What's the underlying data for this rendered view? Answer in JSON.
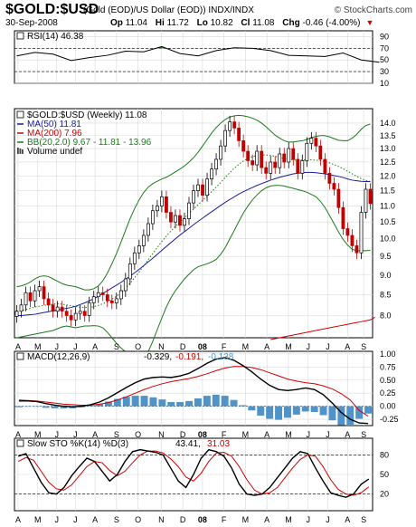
{
  "header": {
    "symbol": "$GOLD:$USD",
    "description": "(Gold (EOD)/US Dollar (EOD))  INDX/INDX",
    "date": "30-Sep-2008",
    "op_label": "Op",
    "op": "11.04",
    "hi_label": "Hi",
    "hi": "11.72",
    "lo_label": "Lo",
    "lo": "10.82",
    "cl_label": "Cl",
    "cl": "11.08",
    "chg_label": "Chg",
    "chg": "-0.46 (-4.00%)",
    "brand": "© StockCharts.com"
  },
  "colors": {
    "ma50": "#1a1aa0",
    "ma200": "#d00000",
    "bb": "#1a7a1a",
    "up": "#ffffff",
    "down": "#c00000",
    "hist": "#4f93c8",
    "green_fill": "#2e7d32"
  },
  "chart_data": [
    {
      "type": "line",
      "panel": "RSI",
      "title": "RSI(14) 46.38",
      "ylim": [
        10,
        100
      ],
      "y_ticks": [
        90,
        70,
        50,
        30,
        10
      ],
      "reference_lines": [
        70,
        30
      ],
      "x_index": [
        0,
        4,
        8,
        12,
        16,
        20,
        24,
        28,
        32,
        36,
        40,
        44,
        48,
        52,
        56,
        60,
        64,
        68,
        72,
        76,
        80
      ],
      "values": [
        57,
        63,
        60,
        49,
        54,
        58,
        65,
        64,
        73,
        61,
        57,
        66,
        71,
        70,
        66,
        58,
        57,
        56,
        62,
        50,
        46
      ]
    },
    {
      "type": "candlestick",
      "panel": "Price",
      "title": "$GOLD:$USD (Weekly) 11.08",
      "legend": [
        "MA(50) 11.81",
        "MA(200) 7.96",
        "BB(20,2.0) 9.67 - 11.81 - 13.96",
        "Volume undef"
      ],
      "log_scale": true,
      "ylim": [
        7.5,
        14.6
      ],
      "y_ticks": [
        8.0,
        8.5,
        9.0,
        9.5,
        10.0,
        10.5,
        11.0,
        11.5,
        12.0,
        12.5,
        13.0,
        13.5,
        14.0
      ],
      "x_labels": [
        "A",
        "M",
        "J",
        "J",
        "A",
        "S",
        "O",
        "N",
        "D",
        "08",
        "F",
        "M",
        "A",
        "M",
        "J",
        "J",
        "A",
        "S"
      ],
      "closes": [
        8.1,
        8.25,
        8.55,
        8.35,
        8.6,
        8.7,
        8.4,
        8.25,
        8.1,
        8.2,
        8.1,
        8.0,
        7.9,
        8.05,
        8.1,
        8.0,
        8.3,
        8.45,
        8.55,
        8.5,
        8.35,
        8.3,
        8.4,
        8.6,
        8.9,
        9.3,
        9.6,
        9.8,
        10.1,
        10.45,
        10.85,
        11.0,
        11.3,
        10.8,
        10.5,
        10.7,
        10.4,
        10.6,
        11.1,
        11.5,
        11.7,
        11.35,
        11.9,
        12.25,
        12.6,
        13.1,
        13.7,
        14.05,
        13.8,
        13.3,
        12.9,
        12.55,
        12.4,
        12.9,
        12.3,
        12.1,
        12.5,
        12.3,
        12.8,
        12.5,
        13.0,
        12.6,
        12.1,
        12.55,
        13.2,
        13.4,
        13.1,
        12.6,
        12.1,
        11.75,
        11.55,
        10.95,
        10.3,
        10.1,
        9.8,
        9.6,
        10.8,
        11.55,
        11.08
      ],
      "ma50": [
        8.0,
        8.0,
        8.01,
        8.02,
        8.03,
        8.05,
        8.07,
        8.09,
        8.11,
        8.13,
        8.15,
        8.17,
        8.19,
        8.22,
        8.26,
        8.3,
        8.35,
        8.4,
        8.46,
        8.53,
        8.6,
        8.67,
        8.74,
        8.81,
        8.89,
        8.97,
        9.06,
        9.15,
        9.25,
        9.35,
        9.45,
        9.56,
        9.67,
        9.78,
        9.89,
        10.0,
        10.11,
        10.21,
        10.31,
        10.42,
        10.52,
        10.62,
        10.72,
        10.82,
        10.92,
        11.02,
        11.12,
        11.21,
        11.3,
        11.39,
        11.47,
        11.54,
        11.61,
        11.68,
        11.74,
        11.8,
        11.86,
        11.91,
        11.96,
        12.0,
        12.04,
        12.08,
        12.1,
        12.12,
        12.13,
        12.13,
        12.12,
        12.1,
        12.08,
        12.05,
        12.02,
        11.99,
        11.95,
        11.9,
        11.86,
        11.84,
        11.82,
        11.81,
        11.81
      ],
      "ma200_start_index": 56,
      "ma200": [
        7.46,
        7.48,
        7.5,
        7.52,
        7.54,
        7.56,
        7.58,
        7.6,
        7.62,
        7.64,
        7.66,
        7.68,
        7.7,
        7.72,
        7.74,
        7.76,
        7.78,
        7.8,
        7.82,
        7.84,
        7.86,
        7.88,
        7.9,
        7.96
      ],
      "bb_mid": [
        8.1,
        8.12,
        8.14,
        8.17,
        8.2,
        8.22,
        8.24,
        8.26,
        8.27,
        8.28,
        8.27,
        8.25,
        8.23,
        8.21,
        8.2,
        8.19,
        8.19,
        8.21,
        8.24,
        8.28,
        8.33,
        8.39,
        8.46,
        8.55,
        8.66,
        8.79,
        8.93,
        9.08,
        9.24,
        9.41,
        9.58,
        9.75,
        9.92,
        10.08,
        10.23,
        10.37,
        10.5,
        10.63,
        10.76,
        10.9,
        11.04,
        11.18,
        11.32,
        11.47,
        11.62,
        11.78,
        11.95,
        12.12,
        12.28,
        12.42,
        12.54,
        12.63,
        12.7,
        12.74,
        12.76,
        12.76,
        12.74,
        12.71,
        12.67,
        12.63,
        12.6,
        12.58,
        12.57,
        12.57,
        12.58,
        12.58,
        12.57,
        12.55,
        12.52,
        12.47,
        12.41,
        12.34,
        12.26,
        12.17,
        12.08,
        11.99,
        11.91,
        11.85,
        11.81
      ],
      "bb_upper": [
        8.7,
        8.72,
        8.76,
        8.82,
        8.9,
        8.96,
        8.98,
        8.96,
        8.9,
        8.84,
        8.78,
        8.74,
        8.72,
        8.7,
        8.66,
        8.62,
        8.62,
        8.65,
        8.72,
        8.85,
        9.05,
        9.3,
        9.58,
        9.9,
        10.25,
        10.6,
        10.92,
        11.2,
        11.44,
        11.62,
        11.74,
        11.82,
        11.9,
        11.96,
        12.05,
        12.15,
        12.25,
        12.36,
        12.5,
        12.66,
        12.86,
        13.1,
        13.35,
        13.6,
        13.82,
        14.0,
        14.15,
        14.25,
        14.3,
        14.32,
        14.3,
        14.26,
        14.2,
        14.12,
        14.0,
        13.85,
        13.68,
        13.52,
        13.4,
        13.3,
        13.25,
        13.25,
        13.28,
        13.3,
        13.35,
        13.42,
        13.47,
        13.5,
        13.5,
        13.45,
        13.38,
        13.32,
        13.3,
        13.3,
        13.4,
        13.55,
        13.75,
        13.9,
        13.96
      ],
      "bb_lower": [
        7.5,
        7.52,
        7.54,
        7.56,
        7.58,
        7.6,
        7.62,
        7.64,
        7.66,
        7.7,
        7.74,
        7.76,
        7.74,
        7.72,
        7.74,
        7.76,
        7.76,
        7.77,
        7.76,
        7.72,
        7.62,
        7.5,
        7.38,
        7.28,
        7.2,
        7.12,
        7.06,
        7.0,
        7.04,
        7.2,
        7.42,
        7.68,
        7.94,
        8.2,
        8.42,
        8.6,
        8.75,
        8.9,
        9.02,
        9.14,
        9.22,
        9.26,
        9.3,
        9.35,
        9.42,
        9.56,
        9.75,
        10.0,
        10.25,
        10.52,
        10.78,
        11.0,
        11.2,
        11.36,
        11.5,
        11.6,
        11.66,
        11.68,
        11.68,
        11.66,
        11.62,
        11.58,
        11.54,
        11.5,
        11.45,
        11.38,
        11.3,
        11.15,
        10.95,
        10.7,
        10.45,
        10.2,
        9.98,
        9.82,
        9.7,
        9.66,
        9.66,
        9.66,
        9.67
      ]
    },
    {
      "type": "line",
      "panel": "MACD",
      "title": "MACD(12,26,9) -0.329, -0.191, -0.138",
      "title_parts": [
        "MACD(12,26,9)",
        "-0.329,",
        "-0.191,",
        "-0.138"
      ],
      "ylim": [
        -0.37,
        1.05
      ],
      "y_ticks": [
        1.0,
        0.75,
        0.5,
        0.25,
        0.0,
        -0.25
      ],
      "x_labels": [
        "A",
        "M",
        "J",
        "J",
        "A",
        "S",
        "O",
        "N",
        "D",
        "08",
        "F",
        "M",
        "A",
        "M",
        "J",
        "J",
        "A",
        "S"
      ],
      "macd": [
        0.1,
        0.1,
        0.09,
        0.05,
        0.02,
        0.0,
        -0.01,
        0.0,
        0.03,
        0.08,
        0.16,
        0.26,
        0.36,
        0.45,
        0.52,
        0.55,
        0.56,
        0.55,
        0.58,
        0.63,
        0.72,
        0.82,
        0.9,
        0.93,
        0.88,
        0.78,
        0.66,
        0.52,
        0.4,
        0.32,
        0.3,
        0.32,
        0.35,
        0.32,
        0.22,
        0.06,
        -0.12,
        -0.25,
        -0.32,
        -0.33
      ],
      "signal": [
        0.12,
        0.11,
        0.1,
        0.08,
        0.06,
        0.04,
        0.03,
        0.02,
        0.02,
        0.04,
        0.07,
        0.12,
        0.18,
        0.25,
        0.32,
        0.38,
        0.43,
        0.47,
        0.5,
        0.53,
        0.57,
        0.62,
        0.68,
        0.73,
        0.76,
        0.76,
        0.74,
        0.7,
        0.64,
        0.58,
        0.52,
        0.48,
        0.45,
        0.43,
        0.39,
        0.33,
        0.24,
        0.12,
        -0.08,
        -0.19
      ],
      "histogram": [
        -0.02,
        -0.01,
        -0.01,
        -0.03,
        -0.04,
        -0.04,
        -0.04,
        -0.02,
        0.01,
        0.04,
        0.09,
        0.14,
        0.18,
        0.2,
        0.2,
        0.17,
        0.13,
        0.08,
        0.08,
        0.1,
        0.15,
        0.2,
        0.22,
        0.2,
        0.12,
        0.02,
        -0.08,
        -0.18,
        -0.24,
        -0.26,
        -0.22,
        -0.16,
        -0.1,
        -0.11,
        -0.17,
        -0.27,
        -0.36,
        -0.37,
        -0.24,
        -0.14
      ]
    },
    {
      "type": "line",
      "panel": "Slow STO",
      "title": "Slow STO %K(14) %D(3) 43.41, 31.03",
      "title_parts": [
        "Slow STO %K(14) %D(3)",
        "43.41,",
        "31.03"
      ],
      "ylim": [
        0,
        100
      ],
      "y_ticks": [
        80,
        50,
        20
      ],
      "x_labels": [
        "A",
        "M",
        "J",
        "J",
        "A",
        "S",
        "O",
        "N",
        "D",
        "08",
        "F",
        "M",
        "A",
        "M",
        "J",
        "J",
        "A",
        "S"
      ],
      "k": [
        78,
        82,
        60,
        38,
        22,
        20,
        30,
        48,
        62,
        75,
        70,
        55,
        40,
        50,
        70,
        85,
        88,
        86,
        84,
        80,
        60,
        40,
        30,
        50,
        75,
        88,
        85,
        78,
        60,
        35,
        20,
        18,
        20,
        30,
        45,
        60,
        75,
        85,
        82,
        60,
        40,
        22,
        18,
        15,
        20,
        35,
        43
      ],
      "d": [
        70,
        76,
        72,
        55,
        38,
        28,
        26,
        34,
        48,
        62,
        70,
        68,
        56,
        48,
        55,
        68,
        80,
        86,
        86,
        83,
        74,
        62,
        46,
        40,
        52,
        70,
        83,
        84,
        78,
        62,
        42,
        26,
        20,
        22,
        30,
        45,
        60,
        73,
        80,
        78,
        62,
        42,
        27,
        20,
        18,
        22,
        31
      ]
    }
  ]
}
